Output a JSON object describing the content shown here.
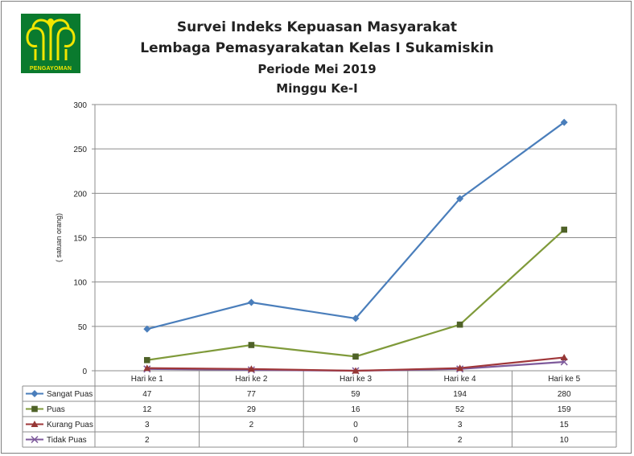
{
  "logo": {
    "icon": "pengayoman-tree-icon",
    "text": "PENGAYOMAN",
    "bg_color": "#0a7a2e",
    "fg_color": "#f2e600"
  },
  "chart_data": {
    "type": "line",
    "title": "Survei Indeks Kepuasan Masyarakat",
    "subtitle": "Lembaga Pemasyarakatan Kelas I Sukamiskin",
    "period": "Periode Mei 2019",
    "week": "Minggu Ke-I",
    "ylabel": "( satuan orang)",
    "xlabel": "",
    "ylim": [
      0,
      300
    ],
    "yticks": [
      0,
      50,
      100,
      150,
      200,
      250,
      300
    ],
    "grid": true,
    "legend": "data-table-left",
    "categories": [
      "Hari ke 1",
      "Hari ke 2",
      "Hari ke 3",
      "Hari ke 4",
      "Hari ke 5"
    ],
    "series": [
      {
        "name": "Sangat Puas",
        "color": "#4a7ebb",
        "marker": "diamond",
        "values": [
          47,
          77,
          59,
          194,
          280
        ],
        "labels": [
          "47",
          "77",
          "59",
          "194",
          "280"
        ]
      },
      {
        "name": "Puas",
        "color": "#7f9a3a",
        "marker": "square",
        "markerColor": "#4f6228",
        "values": [
          12,
          29,
          16,
          52,
          159
        ],
        "labels": [
          "12",
          "29",
          "16",
          "52",
          "159"
        ]
      },
      {
        "name": "Kurang Puas",
        "color": "#a0373a",
        "marker": "triangle",
        "markerColor": "#953735",
        "values": [
          3,
          2,
          0,
          3,
          15
        ],
        "labels": [
          "3",
          "2",
          "0",
          "3",
          "15"
        ]
      },
      {
        "name": "Tidak Puas",
        "color": "#7e5a9b",
        "marker": "x",
        "values": [
          2,
          1,
          0,
          2,
          10
        ],
        "labels": [
          "2",
          "",
          "0",
          "2",
          "10"
        ]
      }
    ]
  }
}
